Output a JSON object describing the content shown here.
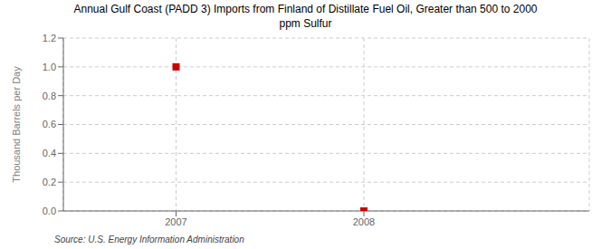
{
  "chart_data": {
    "type": "scatter",
    "title": "Annual Gulf Coast (PADD 3) Imports from Finland of Distillate Fuel Oil, Greater than 500 to 2000\nppm Sulfur",
    "ylabel": "Thousand Barrels per Day",
    "source": "Source: U.S. Energy Information Administration",
    "x": [
      2007,
      2008
    ],
    "values": [
      1.0,
      0.0
    ],
    "color": "#cc0000",
    "marker": "square",
    "xlim": [
      2006.4,
      2009.2
    ],
    "xticks": [
      2007,
      2008
    ],
    "ylim": [
      0.0,
      1.2
    ],
    "yticks": [
      {
        "value": 0.0,
        "label": "0.0"
      },
      0.2,
      0.4,
      0.6,
      0.8,
      {
        "value": 1.0,
        "label": "1.0"
      },
      1.2
    ],
    "grid": true
  }
}
